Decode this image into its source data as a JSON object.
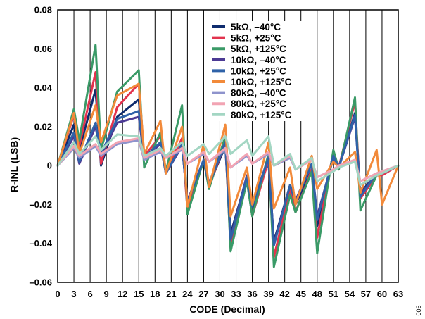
{
  "chart_data": {
    "type": "line",
    "xlabel": "CODE (Decimal)",
    "ylabel": "R-INL (LSB)",
    "xlim": [
      0,
      63
    ],
    "ylim": [
      -0.06,
      0.08
    ],
    "grid": "vertical",
    "legend_position": "top-right",
    "x_ticks": [
      0,
      3,
      6,
      9,
      12,
      15,
      18,
      21,
      24,
      27,
      30,
      33,
      36,
      39,
      42,
      45,
      48,
      51,
      54,
      57,
      60,
      63
    ],
    "x_tick_labels": [
      "0",
      "3",
      "6",
      "9",
      "12",
      "15",
      "18",
      "21",
      "24",
      "27",
      "30",
      "33",
      "36",
      "39",
      "42",
      "45",
      "48",
      "51",
      "54",
      "57",
      "60",
      "63"
    ],
    "y_ticks": [
      -0.06,
      -0.04,
      -0.02,
      0,
      0.02,
      0.04,
      0.06,
      0.08
    ],
    "y_tick_labels": [
      "–0.06",
      "–0.04",
      "–0.02",
      "0",
      "0.02",
      "0.04",
      "0.06",
      "0.08"
    ],
    "x": [
      0,
      3,
      4,
      7,
      8,
      11,
      15,
      16,
      19,
      20,
      23,
      24,
      27,
      28,
      31,
      32,
      35,
      36,
      39,
      40,
      43,
      44,
      47,
      48,
      51,
      52,
      55,
      56,
      59,
      60,
      63
    ],
    "series": [
      {
        "name": "5kΩ, –40°C",
        "color": "#0f2c6e",
        "values": [
          0,
          0.021,
          0.008,
          0.039,
          0,
          0.025,
          0.034,
          0.004,
          0.012,
          -0.003,
          0.011,
          -0.019,
          0.002,
          -0.01,
          0.01,
          -0.035,
          -0.006,
          -0.022,
          0.002,
          -0.039,
          -0.01,
          -0.02,
          -0.002,
          -0.031,
          0.006,
          -0.001,
          0.027,
          -0.014,
          -0.004,
          -0.004,
          0
        ]
      },
      {
        "name": "5kΩ, +25°C",
        "color": "#e2334e",
        "values": [
          0,
          0.026,
          0.01,
          0.048,
          0.001,
          0.03,
          0.042,
          0.005,
          0.015,
          -0.003,
          0.014,
          -0.023,
          0.003,
          -0.011,
          0.012,
          -0.042,
          -0.007,
          -0.026,
          0.003,
          -0.047,
          -0.012,
          -0.024,
          -0.002,
          -0.037,
          0.007,
          -0.001,
          0.033,
          -0.017,
          -0.005,
          -0.005,
          0
        ]
      },
      {
        "name": "5kΩ, +125°C",
        "color": "#3a9a67",
        "values": [
          0,
          0.029,
          0.013,
          0.062,
          0.008,
          0.038,
          0.049,
          -0.001,
          0.017,
          -0.003,
          0.031,
          -0.025,
          0.003,
          -0.012,
          0.015,
          -0.044,
          -0.008,
          -0.026,
          0.006,
          -0.052,
          -0.015,
          -0.024,
          -0.003,
          -0.045,
          0.008,
          -0.002,
          0.035,
          -0.023,
          -0.005,
          -0.004,
          0
        ]
      },
      {
        "name": "10kΩ, –40°C",
        "color": "#4c3a94",
        "values": [
          0,
          0.015,
          0.001,
          0.02,
          0.005,
          0.022,
          0.025,
          0.004,
          0.011,
          -0.004,
          0.01,
          -0.018,
          0.003,
          -0.009,
          0.012,
          -0.037,
          -0.005,
          -0.02,
          0.004,
          -0.04,
          -0.01,
          -0.018,
          0.001,
          -0.026,
          0.004,
          -0.001,
          0.025,
          -0.015,
          -0.004,
          -0.004,
          0
        ]
      },
      {
        "name": "10kΩ, +25°C",
        "color": "#2f62a8",
        "values": [
          0,
          0.017,
          0.002,
          0.022,
          0.006,
          0.024,
          0.028,
          0.004,
          0.012,
          -0.004,
          0.011,
          -0.019,
          0.003,
          -0.01,
          0.012,
          -0.038,
          -0.006,
          -0.021,
          0.004,
          -0.041,
          -0.01,
          -0.019,
          0.001,
          -0.028,
          0.005,
          -0.001,
          0.026,
          -0.016,
          -0.004,
          -0.004,
          0
        ]
      },
      {
        "name": "10kΩ, +125°C",
        "color": "#f28a3a",
        "values": [
          0,
          0.027,
          0.006,
          0.031,
          0.012,
          0.036,
          0.042,
          0.006,
          0.023,
          -0.004,
          0.02,
          -0.021,
          0.011,
          -0.011,
          0.021,
          -0.026,
          -0.001,
          -0.02,
          0.012,
          -0.022,
          -0.001,
          -0.02,
          0.005,
          -0.012,
          0.002,
          -0.001,
          0.007,
          -0.014,
          0.008,
          -0.02,
          0
        ]
      },
      {
        "name": "80kΩ, –40°C",
        "color": "#8e93cc",
        "values": [
          0,
          0.009,
          0.004,
          0.01,
          0.005,
          0.011,
          0.013,
          0.003,
          0.007,
          0.004,
          0.008,
          0.001,
          0.006,
          0.002,
          0.008,
          -0.001,
          0.005,
          0.001,
          0.006,
          0.0,
          0.004,
          -0.002,
          0.003,
          -0.006,
          -0.002,
          0.0,
          0.002,
          -0.008,
          -0.004,
          -0.003,
          0
        ]
      },
      {
        "name": "80kΩ, +25°C",
        "color": "#f2a4b3",
        "values": [
          0,
          0.01,
          0.005,
          0.011,
          0.006,
          0.012,
          0.014,
          0.004,
          0.008,
          0.004,
          0.009,
          0.001,
          0.007,
          0.002,
          0.009,
          -0.001,
          0.006,
          0.001,
          0.007,
          0.0,
          0.005,
          -0.002,
          0.003,
          -0.006,
          -0.002,
          0.0,
          0.003,
          -0.008,
          -0.004,
          -0.003,
          0
        ]
      },
      {
        "name": "80kΩ, +125°C",
        "color": "#a3d6c3",
        "values": [
          0,
          0.012,
          0.006,
          0.015,
          0.008,
          0.016,
          0.015,
          0.005,
          0.009,
          0.005,
          0.012,
          0.005,
          0.011,
          0.006,
          0.015,
          0.006,
          0.013,
          0.005,
          0.015,
          0.0,
          0.006,
          -0.002,
          0.004,
          -0.008,
          -0.003,
          -0.001,
          0.002,
          -0.01,
          -0.005,
          -0.004,
          0
        ]
      }
    ]
  },
  "figure_id": "006"
}
